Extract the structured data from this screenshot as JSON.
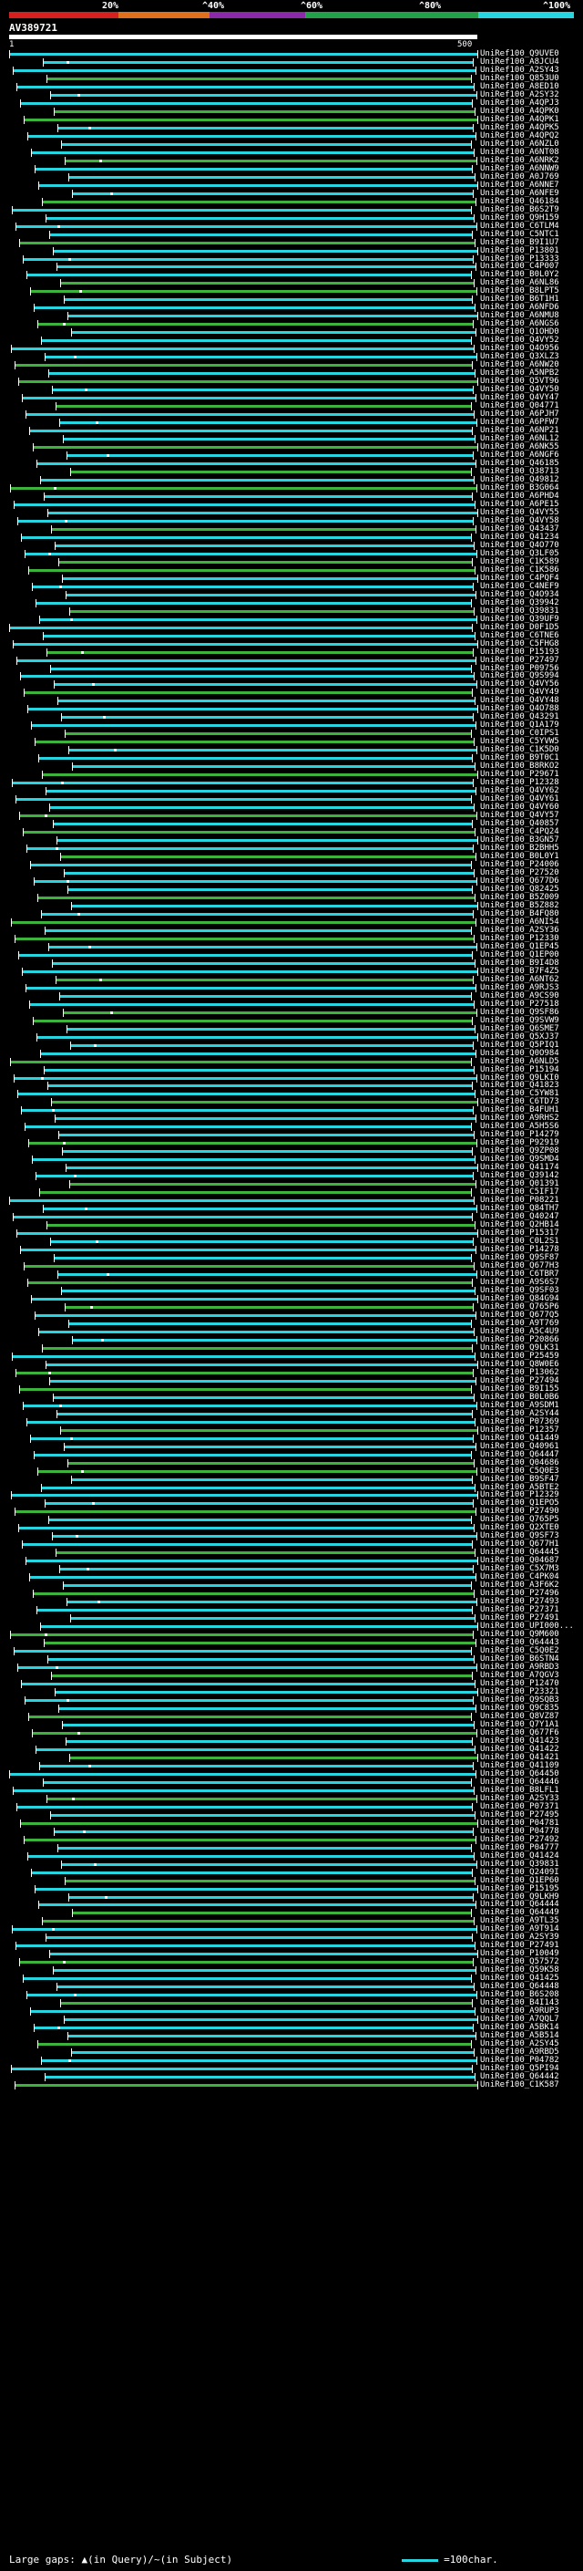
{
  "colors": {
    "seg0": "#d61f1f",
    "seg1": "#e0701c",
    "seg2": "#8a2aa8",
    "seg3": "#23a14a",
    "seg4": "#26d5e0",
    "match_cyan": "#26d5e0",
    "match_green": "#3cb43c",
    "background": "#000000"
  },
  "legend": {
    "percent_labels": [
      "20%",
      "^40%",
      "^60%",
      "^80%",
      "^100%"
    ]
  },
  "query": {
    "id": "AV389721",
    "scale_start": "1",
    "scale_end": "500"
  },
  "hits": [
    "UniRef100_Q9UVE0",
    "UniRef100_A8JCU4",
    "UniRef100_A2SY43",
    "UniRef100_Q853U0",
    "UniRef100_A8ED10",
    "UniRef100_A2SY32",
    "UniRef100_A4QPJ3",
    "UniRef100_A4QPK0",
    "UniRef100_A4QPK1",
    "UniRef100_A4QPK5",
    "UniRef100_A4QPQ2",
    "UniRef100_A6NZL0",
    "UniRef100_A6NT08",
    "UniRef100_A6NRK2",
    "UniRef100_A6NNW9",
    "UniRef100_A0J769",
    "UniRef100_A6NNE7",
    "UniRef100_A6NFE9",
    "UniRef100_Q46184",
    "UniRef100_B6S2T9",
    "UniRef100_Q9H159",
    "UniRef100_C6TLM4",
    "UniRef100_C5NTC1",
    "UniRef100_B9I1U7",
    "UniRef100_P13801",
    "UniRef100_P13333",
    "UniRef100_C4P007",
    "UniRef100_B0L0Y2",
    "UniRef100_A6NL86",
    "UniRef100_B8LPT5",
    "UniRef100_B6T1H1",
    "UniRef100_A6NFD6",
    "UniRef100_A6NMU8",
    "UniRef100_A6NGS6",
    "UniRef100_Q1OHD0",
    "UniRef100_Q4VY52",
    "UniRef100_Q4O956",
    "UniRef100_Q3XLZ3",
    "UniRef100_A6NW20",
    "UniRef100_A5NPB2",
    "UniRef100_Q5VT96",
    "UniRef100_Q4VY50",
    "UniRef100_Q4VY47",
    "UniRef100_Q04771",
    "UniRef100_A6PJH7",
    "UniRef100_A6PFW7",
    "UniRef100_A6NP21",
    "UniRef100_A6NL12",
    "UniRef100_A6NK55",
    "UniRef100_A6NGF6",
    "UniRef100_Q46185",
    "UniRef100_Q38713",
    "UniRef100_Q49812",
    "UniRef100_B3G064",
    "UniRef100_A6PHD4",
    "UniRef100_A6PE15",
    "UniRef100_Q4VY55",
    "UniRef100_Q4VY58",
    "UniRef100_Q43437",
    "UniRef100_Q41234",
    "UniRef100_Q4O770",
    "UniRef100_Q3LF05",
    "UniRef100_C1K589",
    "UniRef100_C1K586",
    "UniRef100_C4PQF4",
    "UniRef100_C4NEF9",
    "UniRef100_Q4O934",
    "UniRef100_Q39942",
    "UniRef100_Q39831",
    "UniRef100_Q39UF9",
    "UniRef100_D0F1D5",
    "UniRef100_C6TNE6",
    "UniRef100_C5FHG8",
    "UniRef100_P15193",
    "UniRef100_P27497",
    "UniRef100_P09756",
    "UniRef100_Q9S994",
    "UniRef100_Q4VY56",
    "UniRef100_Q4VY49",
    "UniRef100_Q4VY48",
    "UniRef100_Q4O788",
    "UniRef100_Q43291",
    "UniRef100_Q1A179",
    "UniRef100_C0IPS1",
    "UniRef100_C5YVW5",
    "UniRef100_C1K5D0",
    "UniRef100_B9T0C1",
    "UniRef100_B8RKO2",
    "UniRef100_P29671",
    "UniRef100_P12328",
    "UniRef100_Q4VY62",
    "UniRef100_Q4VY61",
    "UniRef100_Q4VY60",
    "UniRef100_Q4VY57",
    "UniRef100_Q40857",
    "UniRef100_C4PQ24",
    "UniRef100_B3GN57",
    "UniRef100_B2BHH5",
    "UniRef100_B0L0Y1",
    "UniRef100_P24006",
    "UniRef100_P27520",
    "UniRef100_Q677D6",
    "UniRef100_Q82425",
    "UniRef100_B5Z009",
    "UniRef100_B5Z882",
    "UniRef100_B4FQ80",
    "UniRef100_A6NI54",
    "UniRef100_A2SY36",
    "UniRef100_P12330",
    "UniRef100_Q1EP45",
    "UniRef100_Q1EP00",
    "UniRef100_B9I4D8",
    "UniRef100_B7F4Z5",
    "UniRef100_A6NT62",
    "UniRef100_A9RJS3",
    "UniRef100_A9CS90",
    "UniRef100_P27518",
    "UniRef100_Q9SF86",
    "UniRef100_Q9SVW9",
    "UniRef100_Q6SME7",
    "UniRef100_Q5XJ37",
    "UniRef100_Q5PIQ1",
    "UniRef100_Q0O984",
    "UniRef100_A6NLD5",
    "UniRef100_P15194",
    "UniRef100_Q9LKI0",
    "UniRef100_Q41823",
    "UniRef100_C5YW81",
    "UniRef100_C6TD73",
    "UniRef100_B4FUH1",
    "UniRef100_A9RHS2",
    "UniRef100_A5H5S6",
    "UniRef100_P14279",
    "UniRef100_P92919",
    "UniRef100_Q9ZP08",
    "UniRef100_Q9SMD4",
    "UniRef100_Q41174",
    "UniRef100_Q39142",
    "UniRef100_Q01391",
    "UniRef100_C5IF17",
    "UniRef100_P08221",
    "UniRef100_Q84TH7",
    "UniRef100_Q40247",
    "UniRef100_Q2HB14",
    "UniRef100_P15317",
    "UniRef100_C0L2S1",
    "UniRef100_P14278",
    "UniRef100_Q9SF87",
    "UniRef100_Q677H3",
    "UniRef100_C6TBR7",
    "UniRef100_A9S6S7",
    "UniRef100_Q9SF03",
    "UniRef100_Q84G94",
    "UniRef100_Q765P6",
    "UniRef100_Q677Q5",
    "UniRef100_A9T769",
    "UniRef100_A5C4U9",
    "UniRef100_P20866",
    "UniRef100_Q9LK31",
    "UniRef100_P25459",
    "UniRef100_Q8W0E6",
    "UniRef100_P13062",
    "UniRef100_P27494",
    "UniRef100_B9I155",
    "UniRef100_B0L0B6",
    "UniRef100_A9SDM1",
    "UniRef100_A2SY44",
    "UniRef100_P07369",
    "UniRef100_P12357",
    "UniRef100_Q41449",
    "UniRef100_Q40961",
    "UniRef100_Q64447",
    "UniRef100_Q04686",
    "UniRef100_C5Q0E3",
    "UniRef100_B9SF47",
    "UniRef100_A5BTE2",
    "UniRef100_P12329",
    "UniRef100_Q1EPO5",
    "UniRef100_P27490",
    "UniRef100_Q765P5",
    "UniRef100_Q2XTE0",
    "UniRef100_Q9SF73",
    "UniRef100_Q677H1",
    "UniRef100_Q64445",
    "UniRef100_Q04687",
    "UniRef100_C5X7M3",
    "UniRef100_C4PK04",
    "UniRef100_A3F6K2",
    "UniRef100_P27496",
    "UniRef100_P27493",
    "UniRef100_P27371",
    "UniRef100_P27491",
    "UniRef100_UPI000...",
    "UniRef100_Q9M600",
    "UniRef100_Q64443",
    "UniRef100_C5Q0E2",
    "UniRef100_B6STN4",
    "UniRef100_A9RBD3",
    "UniRef100_A7QGV3",
    "UniRef100_P12470",
    "UniRef100_P23321",
    "UniRef100_Q9SQB3",
    "UniRef100_Q9C835",
    "UniRef100_Q8VZ87",
    "UniRef100_Q7Y1A1",
    "UniRef100_Q677F6",
    "UniRef100_Q41423",
    "UniRef100_Q41422",
    "UniRef100_Q41421",
    "UniRef100_Q41109",
    "UniRef100_Q64450",
    "UniRef100_Q64446",
    "UniRef100_B8LFL1",
    "UniRef100_A2SY33",
    "UniRef100_P07371",
    "UniRef100_P27495",
    "UniRef100_P04781",
    "UniRef100_P04778",
    "UniRef100_P27492",
    "UniRef100_P04777",
    "UniRef100_Q41424",
    "UniRef100_Q39831",
    "UniRef100_Q2409I",
    "UniRef100_Q1EP60",
    "UniRef100_P15195",
    "UniRef100_Q9LKH9",
    "UniRef100_Q64444",
    "UniRef100_Q64449",
    "UniRef100_A9TL35",
    "UniRef100_A9T914",
    "UniRef100_A2SY39",
    "UniRef100_P27491",
    "UniRef100_P10049",
    "UniRef100_Q57572",
    "UniRef100_Q59K58",
    "UniRef100_Q41425",
    "UniRef100_Q64448",
    "UniRef100_B6S208",
    "UniRef100_B4I143",
    "UniRef100_A9RUP3",
    "UniRef100_A7QQL7",
    "UniRef100_A5BK14",
    "UniRef100_A5B514",
    "UniRef100_A2SY45",
    "UniRef100_A9RBD5",
    "UniRef100_P04782",
    "UniRef100_Q5PI94",
    "UniRef100_Q64442",
    "UniRef100_C1K587"
  ],
  "footer": {
    "gaps_label": "Large gaps:",
    "gaps_query": "(in Query)",
    "gaps_sep": "/",
    "gaps_subject": "(in Subject)",
    "scale_label": "=100char."
  }
}
